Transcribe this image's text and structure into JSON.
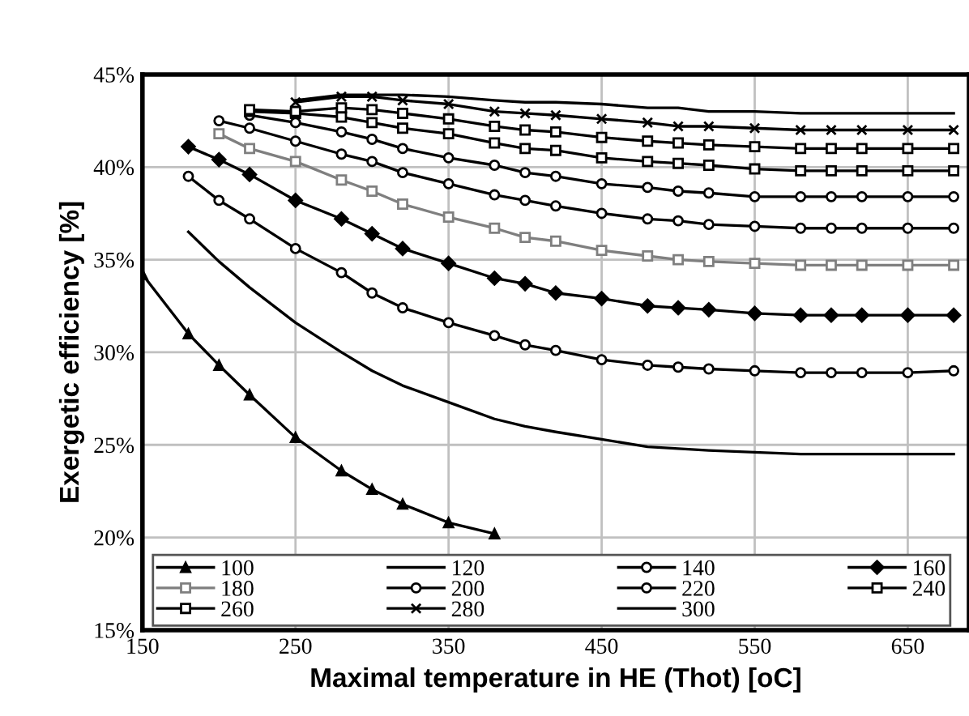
{
  "chart_data": {
    "type": "line",
    "xlabel": "Maximal temperature in HE (Thot) [oC]",
    "ylabel": "Exergetic efficiency [%]",
    "x": [
      150,
      180,
      200,
      220,
      250,
      280,
      300,
      320,
      350,
      380,
      400,
      420,
      450,
      480,
      500,
      520,
      550,
      580,
      600,
      620,
      650,
      680
    ],
    "xlim": [
      150,
      690
    ],
    "xticks": [
      150,
      250,
      350,
      450,
      550,
      650
    ],
    "ylim": [
      15,
      45
    ],
    "yticks": [
      {
        "value": 15,
        "label": "15%"
      },
      {
        "value": 20,
        "label": "20%"
      },
      {
        "value": 25,
        "label": "25%"
      },
      {
        "value": 30,
        "label": "30%"
      },
      {
        "value": 35,
        "label": "35%"
      },
      {
        "value": 40,
        "label": "40%"
      },
      {
        "value": 45,
        "label": "45%"
      }
    ],
    "grid": true,
    "legend": "bottom",
    "line_style": "solid",
    "series": [
      {
        "name": "100",
        "color": "#000000",
        "marker": "triangle",
        "values": [
          34.2,
          31.0,
          29.3,
          27.7,
          25.4,
          23.6,
          22.6,
          21.8,
          20.8,
          20.2,
          null,
          null,
          null,
          null,
          null,
          null,
          null,
          null,
          null,
          null,
          null,
          null
        ]
      },
      {
        "name": "120",
        "color": "#000000",
        "marker": "none",
        "values": [
          null,
          36.5,
          34.9,
          33.5,
          31.6,
          30.0,
          29.0,
          28.2,
          27.3,
          26.4,
          26.0,
          25.7,
          25.3,
          24.9,
          24.8,
          24.7,
          24.6,
          24.5,
          24.5,
          24.5,
          24.5,
          24.5
        ]
      },
      {
        "name": "140",
        "color": "#000000",
        "marker": "circle",
        "values": [
          null,
          39.5,
          38.2,
          37.2,
          35.6,
          34.3,
          33.2,
          32.4,
          31.6,
          30.9,
          30.4,
          30.1,
          29.6,
          29.3,
          29.2,
          29.1,
          29.0,
          28.9,
          28.9,
          28.9,
          28.9,
          29.0
        ]
      },
      {
        "name": "160",
        "color": "#000000",
        "marker": "diamond",
        "values": [
          null,
          41.1,
          40.4,
          39.6,
          38.2,
          37.2,
          36.4,
          35.6,
          34.8,
          34.0,
          33.7,
          33.2,
          32.9,
          32.5,
          32.4,
          32.3,
          32.1,
          32.0,
          32.0,
          32.0,
          32.0,
          32.0
        ]
      },
      {
        "name": "180",
        "color": "#7f7f7f",
        "marker": "square",
        "values": [
          null,
          null,
          41.8,
          41.0,
          40.3,
          39.3,
          38.7,
          38.0,
          37.3,
          36.7,
          36.2,
          36.0,
          35.5,
          35.2,
          35.0,
          34.9,
          34.8,
          34.7,
          34.7,
          34.7,
          34.7,
          34.7
        ]
      },
      {
        "name": "200",
        "color": "#000000",
        "marker": "circle",
        "values": [
          null,
          null,
          42.5,
          42.1,
          41.4,
          40.7,
          40.3,
          39.7,
          39.1,
          38.5,
          38.2,
          37.9,
          37.5,
          37.2,
          37.1,
          36.9,
          36.8,
          36.7,
          36.7,
          36.7,
          36.7,
          36.7
        ]
      },
      {
        "name": "220",
        "color": "#000000",
        "marker": "circle",
        "values": [
          null,
          null,
          null,
          42.8,
          42.4,
          41.9,
          41.5,
          41.0,
          40.5,
          40.1,
          39.7,
          39.5,
          39.1,
          38.9,
          38.7,
          38.6,
          38.4,
          38.4,
          38.4,
          38.4,
          38.4,
          38.4
        ]
      },
      {
        "name": "240",
        "color": "#000000",
        "marker": "square",
        "values": [
          null,
          null,
          null,
          43.0,
          42.9,
          42.7,
          42.4,
          42.1,
          41.8,
          41.3,
          41.0,
          40.9,
          40.5,
          40.3,
          40.2,
          40.1,
          39.9,
          39.8,
          39.8,
          39.8,
          39.8,
          39.8
        ]
      },
      {
        "name": "260",
        "color": "#000000",
        "marker": "square",
        "values": [
          null,
          null,
          null,
          43.1,
          43.0,
          43.2,
          43.1,
          42.9,
          42.6,
          42.2,
          42.0,
          41.9,
          41.6,
          41.4,
          41.3,
          41.2,
          41.1,
          41.0,
          41.0,
          41.0,
          41.0,
          41.0
        ]
      },
      {
        "name": "280",
        "color": "#000000",
        "marker": "cross",
        "values": [
          null,
          null,
          null,
          null,
          43.5,
          43.8,
          43.8,
          43.6,
          43.4,
          43.0,
          42.9,
          42.8,
          42.6,
          42.4,
          42.2,
          42.2,
          42.1,
          42.0,
          42.0,
          42.0,
          42.0,
          42.0
        ]
      },
      {
        "name": "300",
        "color": "#000000",
        "marker": "none",
        "values": [
          null,
          null,
          null,
          null,
          43.6,
          43.9,
          43.9,
          43.9,
          43.8,
          43.6,
          43.5,
          43.5,
          43.4,
          43.2,
          43.2,
          43.0,
          43.0,
          42.9,
          42.9,
          42.9,
          42.9,
          42.9
        ]
      }
    ]
  }
}
